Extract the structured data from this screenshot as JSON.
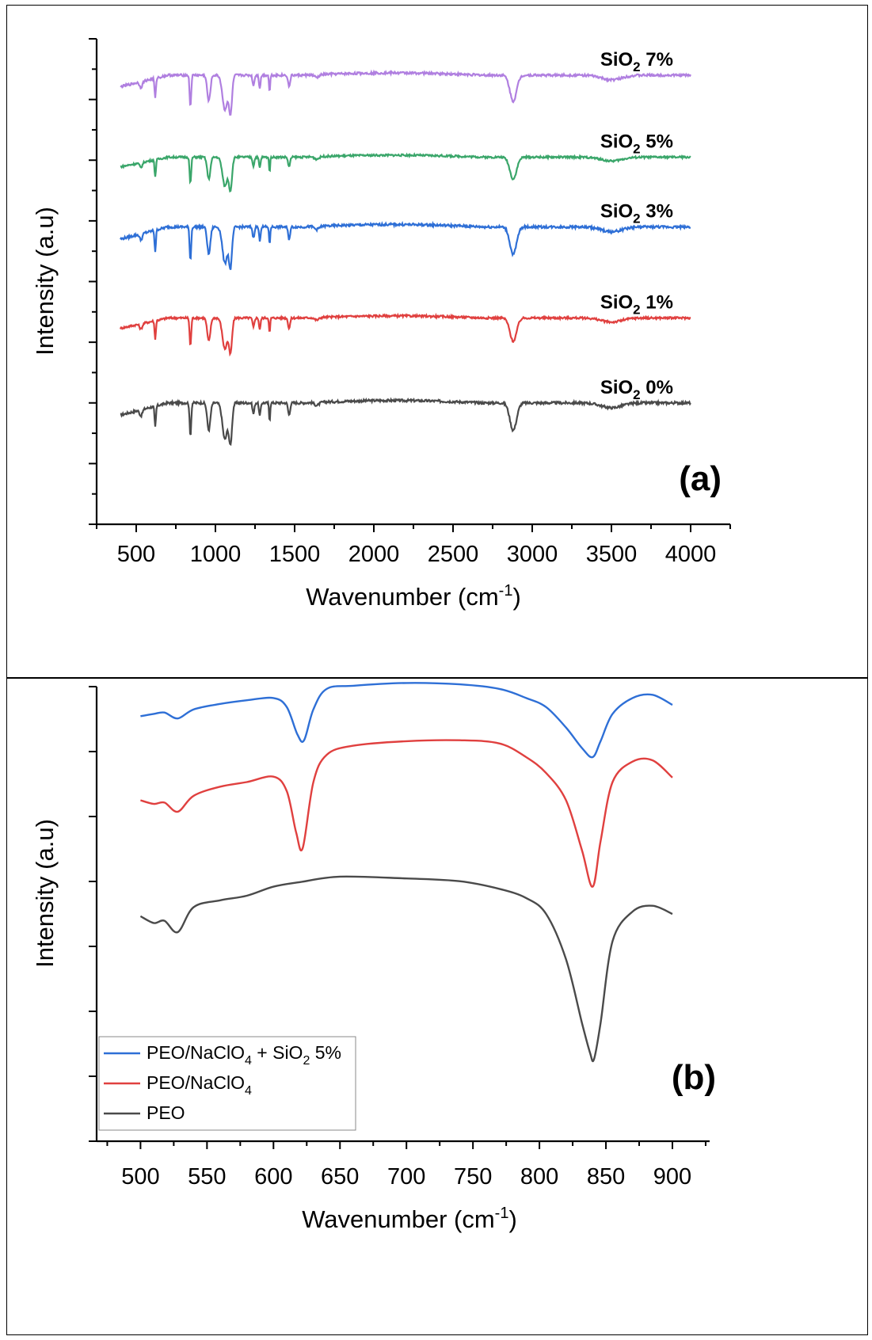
{
  "colors": {
    "purple": "#b07fe0",
    "green": "#3aa66a",
    "blue": "#2e6fd6",
    "red": "#e0403f",
    "gray": "#4a4a4a"
  },
  "chart_data": [
    {
      "type": "line",
      "panel_label": "(a)",
      "xlabel": "Wavenumber (cm",
      "xlabel_sup": "-1",
      "xlabel_end": ")",
      "ylabel": "Intensity (a.u)",
      "xlim": [
        250,
        4250
      ],
      "ylim": [
        0,
        8
      ],
      "xticks": [
        500,
        1000,
        1500,
        2000,
        2500,
        3000,
        3500,
        4000
      ],
      "grid": false,
      "series": [
        {
          "name": "SiO2 0%",
          "label_main": "SiO",
          "label_sub": "2",
          "label_pct": " 0%",
          "color_key": "gray",
          "baseline": 2.0,
          "amp": 1.0
        },
        {
          "name": "SiO2 1%",
          "label_main": "SiO",
          "label_sub": "2",
          "label_pct": " 1%",
          "color_key": "red",
          "baseline": 3.4,
          "amp": 0.85
        },
        {
          "name": "SiO2 3%",
          "label_main": "SiO",
          "label_sub": "2",
          "label_pct": " 3%",
          "color_key": "blue",
          "baseline": 4.9,
          "amp": 1.0
        },
        {
          "name": "SiO2 5%",
          "label_main": "SiO",
          "label_sub": "2",
          "label_pct": " 5%",
          "color_key": "green",
          "baseline": 6.05,
          "amp": 0.8
        },
        {
          "name": "SiO2 7%",
          "label_main": "SiO",
          "label_sub": "2",
          "label_pct": " 7%",
          "color_key": "purple",
          "baseline": 7.4,
          "amp": 0.95
        }
      ],
      "peaks_cm1": [
        {
          "x": 530,
          "depth": 0.1,
          "width": 12
        },
        {
          "x": 620,
          "depth": 0.35,
          "width": 6
        },
        {
          "x": 842,
          "depth": 0.55,
          "width": 7
        },
        {
          "x": 958,
          "depth": 0.45,
          "width": 14
        },
        {
          "x": 1060,
          "depth": 0.6,
          "width": 22
        },
        {
          "x": 1095,
          "depth": 0.65,
          "width": 14
        },
        {
          "x": 1240,
          "depth": 0.18,
          "width": 8
        },
        {
          "x": 1280,
          "depth": 0.22,
          "width": 7
        },
        {
          "x": 1342,
          "depth": 0.3,
          "width": 5
        },
        {
          "x": 1465,
          "depth": 0.2,
          "width": 9
        },
        {
          "x": 1640,
          "depth": 0.05,
          "width": 20
        },
        {
          "x": 2880,
          "depth": 0.45,
          "width": 30
        },
        {
          "x": 3500,
          "depth": 0.08,
          "width": 90
        }
      ]
    },
    {
      "type": "line",
      "panel_label": "(b)",
      "xlabel": "Wavenumber (cm",
      "xlabel_sup": "-1",
      "xlabel_end": ")",
      "ylabel": "Intensity (a.u)",
      "xlim": [
        467,
        928
      ],
      "ylim": [
        0,
        10
      ],
      "xticks": [
        500,
        550,
        600,
        650,
        700,
        750,
        800,
        850,
        900
      ],
      "grid": false,
      "legend_position": "bottom-left",
      "series": [
        {
          "name": "PEO/NaClO4 + SiO2 5%",
          "legend_parts": [
            "PEO/NaClO",
            "4",
            " + SiO",
            "2",
            " 5%"
          ],
          "color_key": "blue",
          "x": [
            500,
            510,
            518,
            528,
            540,
            560,
            580,
            600,
            610,
            618,
            623,
            630,
            640,
            660,
            700,
            740,
            770,
            790,
            805,
            820,
            832,
            840,
            846,
            855,
            870,
            885,
            900
          ],
          "y": [
            9.35,
            9.4,
            9.43,
            9.3,
            9.5,
            9.62,
            9.7,
            9.75,
            9.55,
            8.95,
            8.82,
            9.5,
            9.95,
            10.02,
            10.08,
            10.05,
            9.95,
            9.75,
            9.55,
            9.1,
            8.65,
            8.45,
            8.8,
            9.4,
            9.75,
            9.82,
            9.6
          ]
        },
        {
          "name": "PEO/NaClO4",
          "legend_parts": [
            "PEO/NaClO",
            "4"
          ],
          "color_key": "red",
          "x": [
            500,
            510,
            518,
            528,
            540,
            560,
            580,
            600,
            610,
            617,
            622,
            630,
            640,
            660,
            700,
            740,
            770,
            790,
            805,
            820,
            832,
            840,
            846,
            855,
            870,
            885,
            900
          ],
          "y": [
            7.5,
            7.42,
            7.45,
            7.25,
            7.6,
            7.8,
            7.9,
            8.02,
            7.7,
            6.8,
            6.45,
            7.9,
            8.5,
            8.7,
            8.8,
            8.82,
            8.75,
            8.45,
            8.1,
            7.5,
            6.4,
            5.6,
            6.6,
            7.9,
            8.35,
            8.38,
            8.0
          ]
        },
        {
          "name": "PEO",
          "legend_parts": [
            "PEO"
          ],
          "color_key": "gray",
          "x": [
            500,
            510,
            518,
            528,
            540,
            560,
            580,
            600,
            620,
            650,
            700,
            740,
            770,
            790,
            805,
            820,
            832,
            838,
            841,
            846,
            855,
            870,
            885,
            900
          ],
          "y": [
            4.95,
            4.8,
            4.85,
            4.6,
            5.15,
            5.3,
            5.4,
            5.6,
            5.7,
            5.82,
            5.78,
            5.72,
            5.55,
            5.35,
            5.0,
            4.0,
            2.6,
            1.95,
            1.8,
            2.6,
            4.4,
            5.05,
            5.18,
            5.0
          ]
        }
      ]
    }
  ]
}
